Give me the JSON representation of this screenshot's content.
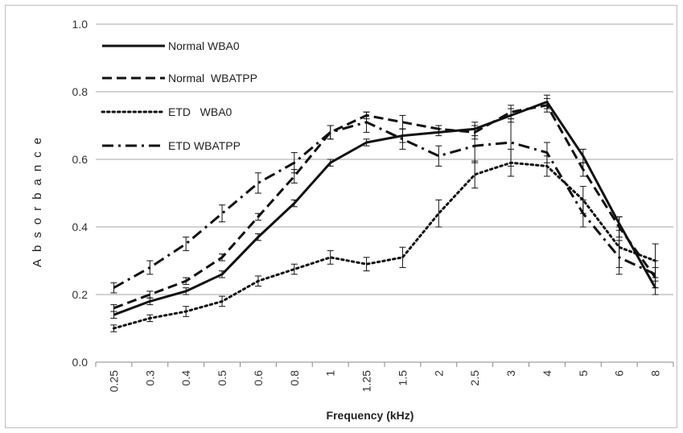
{
  "chart_data": {
    "type": "line",
    "title": "",
    "xlabel": "Frequency (kHz)",
    "ylabel": "Absorbance",
    "categories": [
      "0.25",
      "0.3",
      "0.4",
      "0.5",
      "0.6",
      "0.8",
      "1",
      "1.25",
      "1.5",
      "2",
      "2.5",
      "3",
      "4",
      "5",
      "6",
      "8"
    ],
    "ylim": [
      0,
      1
    ],
    "yticks": [
      "0.0",
      "0.2",
      "0.4",
      "0.6",
      "0.8",
      "1.0"
    ],
    "grid": true,
    "legend_position": "top-left",
    "series": [
      {
        "name": "Normal WBA0",
        "style": "solid",
        "values": [
          0.14,
          0.18,
          0.21,
          0.26,
          0.37,
          0.47,
          0.59,
          0.65,
          0.67,
          0.68,
          0.69,
          0.73,
          0.77,
          0.61,
          0.41,
          0.22
        ],
        "errors": [
          0.01,
          0.01,
          0.01,
          0.01,
          0.01,
          0.01,
          0.01,
          0.01,
          0.02,
          0.01,
          0.02,
          0.02,
          0.02,
          0.02,
          0.02,
          0.02
        ]
      },
      {
        "name": "Normal  WBATPP",
        "style": "dashed",
        "values": [
          0.16,
          0.2,
          0.24,
          0.31,
          0.43,
          0.55,
          0.68,
          0.73,
          0.71,
          0.69,
          0.68,
          0.74,
          0.76,
          0.57,
          0.4,
          0.25
        ],
        "errors": [
          0.01,
          0.01,
          0.01,
          0.01,
          0.01,
          0.02,
          0.02,
          0.01,
          0.02,
          0.01,
          0.02,
          0.02,
          0.02,
          0.02,
          0.03,
          0.03
        ]
      },
      {
        "name": "ETD   WBA0",
        "style": "dotted",
        "values": [
          0.1,
          0.13,
          0.15,
          0.18,
          0.24,
          0.275,
          0.31,
          0.29,
          0.31,
          0.44,
          0.555,
          0.59,
          0.58,
          0.48,
          0.34,
          0.3
        ],
        "errors": [
          0.01,
          0.01,
          0.015,
          0.015,
          0.015,
          0.015,
          0.02,
          0.02,
          0.03,
          0.04,
          0.04,
          0.04,
          0.03,
          0.04,
          0.06,
          0.05
        ]
      },
      {
        "name": "ETD WBATPP",
        "style": "dashdot",
        "values": [
          0.22,
          0.28,
          0.35,
          0.44,
          0.53,
          0.59,
          0.68,
          0.71,
          0.66,
          0.61,
          0.64,
          0.65,
          0.62,
          0.44,
          0.31,
          0.26
        ],
        "errors": [
          0.015,
          0.02,
          0.02,
          0.025,
          0.03,
          0.03,
          0.02,
          0.03,
          0.03,
          0.03,
          0.05,
          0.07,
          0.03,
          0.04,
          0.05,
          0.04
        ]
      }
    ]
  }
}
